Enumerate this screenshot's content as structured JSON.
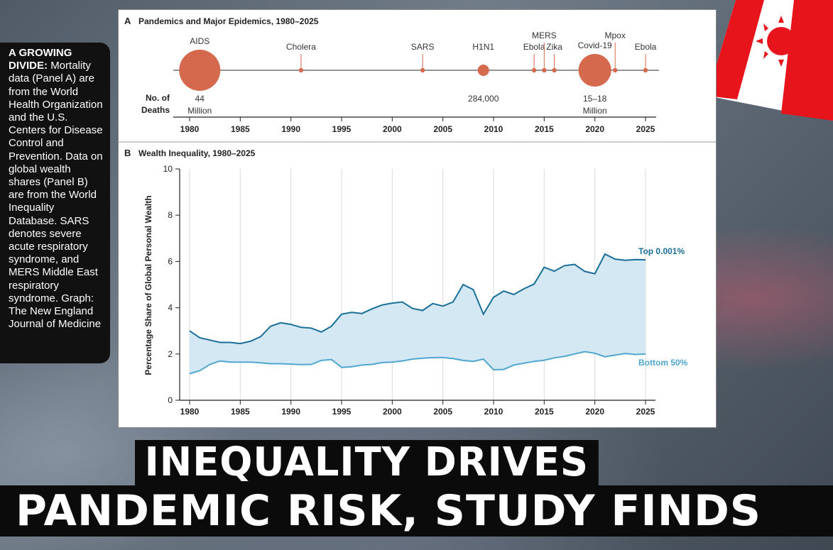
{
  "caption": {
    "lead": "A GROWING DIVIDE:",
    "body": "Mortality data (Panel A) are from the World Health Organization and the U.S. Centers for Disease Control and Prevention. Data on global wealth shares (Panel B) are from the World Inequality Database. SARS denotes severe acute respiratory syndrome, and MERS Middle East respiratory syndrome. Graph: The New England Journal of Medicine"
  },
  "headline": {
    "line1": "INEQUALITY DRIVES",
    "line2": "PANDEMIC RISK, STUDY FINDS"
  },
  "colors": {
    "event_marker": "#d4694d",
    "top_line": "#1a6f98",
    "bottom_line": "#4fa6cf",
    "band_fill": "#d4e8f3",
    "caption_bg": "#111111",
    "headline_bg": "#0b0b0b",
    "flag_red": "#e8141b"
  },
  "chart_data": [
    {
      "type": "scatter",
      "panel_letter": "A",
      "title": "Pandemics and Major Epidemics, 1980–2025",
      "row_label_line1": "No. of",
      "row_label_line2": "Deaths",
      "x_ticks": [
        1980,
        1985,
        1990,
        1995,
        2000,
        2005,
        2010,
        2015,
        2020,
        2025
      ],
      "xlim": [
        1980,
        2025
      ],
      "events": [
        {
          "name": "AIDS",
          "year": 1981,
          "deaths_label_line1": "44",
          "deaths_label_line2": "Million",
          "size": "very-large"
        },
        {
          "name": "Cholera",
          "year": 1991,
          "size": "small"
        },
        {
          "name": "SARS",
          "year": 2003,
          "size": "small"
        },
        {
          "name": "H1N1",
          "year": 2009,
          "deaths_label_line1": "284,000",
          "deaths_label_line2": "",
          "size": "medium"
        },
        {
          "name": "Ebola",
          "year": 2014,
          "size": "small"
        },
        {
          "name": "MERS",
          "year": 2015,
          "size": "small"
        },
        {
          "name": "Zika",
          "year": 2016,
          "size": "small"
        },
        {
          "name": "Covid-19",
          "year": 2020,
          "deaths_label_line1": "15–18",
          "deaths_label_line2": "Million",
          "size": "large"
        },
        {
          "name": "Mpox",
          "year": 2022,
          "size": "small"
        },
        {
          "name": "Ebola",
          "year": 2025,
          "size": "small"
        }
      ]
    },
    {
      "type": "area",
      "panel_letter": "B",
      "title": "Wealth Inequality, 1980–2025",
      "ylabel": "Percentage Share of Global Personal Wealth",
      "xlim": [
        1980,
        2025
      ],
      "ylim": [
        0,
        10
      ],
      "x_ticks": [
        1980,
        1985,
        1990,
        1995,
        2000,
        2005,
        2010,
        2015,
        2020,
        2025
      ],
      "y_ticks": [
        0,
        2,
        4,
        6,
        8,
        10
      ],
      "x": [
        1980,
        1981,
        1982,
        1983,
        1984,
        1985,
        1986,
        1987,
        1988,
        1989,
        1990,
        1991,
        1992,
        1993,
        1994,
        1995,
        1996,
        1997,
        1998,
        1999,
        2000,
        2001,
        2002,
        2003,
        2004,
        2005,
        2006,
        2007,
        2008,
        2009,
        2010,
        2011,
        2012,
        2013,
        2014,
        2015,
        2016,
        2017,
        2018,
        2019,
        2020,
        2021,
        2022,
        2023,
        2024,
        2025
      ],
      "series": [
        {
          "name": "Top 0.001%",
          "values": [
            3.0,
            2.7,
            2.6,
            2.5,
            2.5,
            2.45,
            2.55,
            2.75,
            3.2,
            3.35,
            3.28,
            3.15,
            3.12,
            2.95,
            3.2,
            3.72,
            3.8,
            3.75,
            3.95,
            4.12,
            4.2,
            4.25,
            3.97,
            3.88,
            4.18,
            4.07,
            4.25,
            5.0,
            4.78,
            3.72,
            4.45,
            4.72,
            4.57,
            4.82,
            5.02,
            5.75,
            5.58,
            5.82,
            5.87,
            5.57,
            5.47,
            6.32,
            6.1,
            6.05,
            6.08,
            6.07
          ]
        },
        {
          "name": "Bottom 50%",
          "values": [
            1.15,
            1.28,
            1.55,
            1.7,
            1.65,
            1.65,
            1.65,
            1.62,
            1.58,
            1.58,
            1.56,
            1.54,
            1.55,
            1.72,
            1.76,
            1.42,
            1.45,
            1.52,
            1.55,
            1.63,
            1.65,
            1.7,
            1.78,
            1.82,
            1.84,
            1.85,
            1.8,
            1.72,
            1.68,
            1.78,
            1.32,
            1.33,
            1.52,
            1.6,
            1.68,
            1.73,
            1.83,
            1.9,
            2.0,
            2.1,
            2.03,
            1.88,
            1.95,
            2.02,
            1.98,
            2.0
          ]
        }
      ]
    }
  ]
}
